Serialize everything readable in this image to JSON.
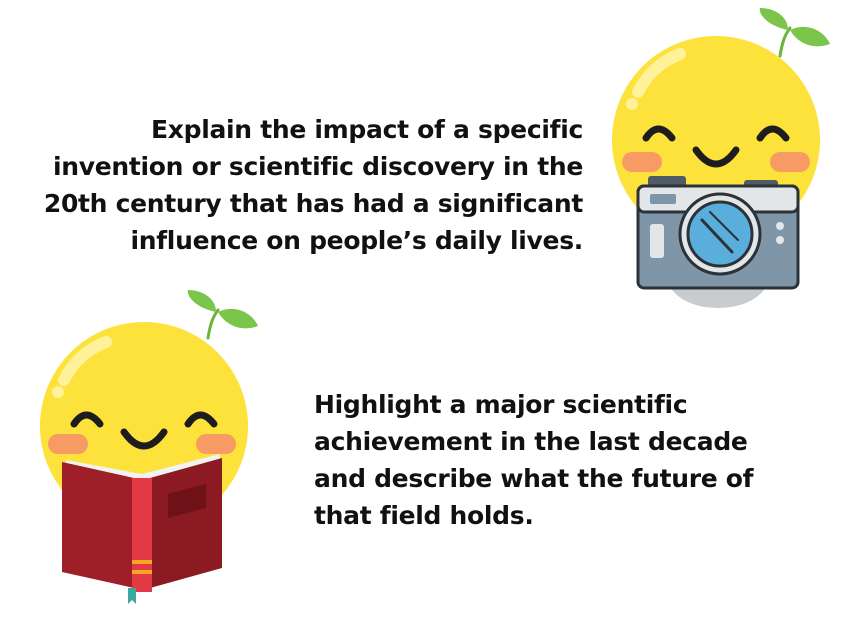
{
  "prompts": [
    {
      "lines": [
        "Explain the impact of a specific",
        "invention or scientific discovery in the",
        "20th century that has had a significant",
        "influence on people’s daily lives."
      ]
    },
    {
      "lines": [
        "Highlight a major scientific",
        "achievement in the last decade",
        "and describe what the future of",
        "that field holds."
      ]
    }
  ],
  "illustrations": {
    "camera_mascot": "smiling-sprout-face-with-camera-icon",
    "book_mascot": "smiling-sprout-face-reading-book-icon"
  },
  "colors": {
    "face": "#FCE23A",
    "face_highlight": "#FFF29A",
    "cheek": "#F79A63",
    "leaf": "#7BC64A",
    "camera_body": "#7F96A8",
    "camera_top": "#E2E6E9",
    "lens": "#5AAEDB",
    "book_cover": "#9E1F27",
    "book_spine": "#E23A44",
    "text": "#111111"
  }
}
